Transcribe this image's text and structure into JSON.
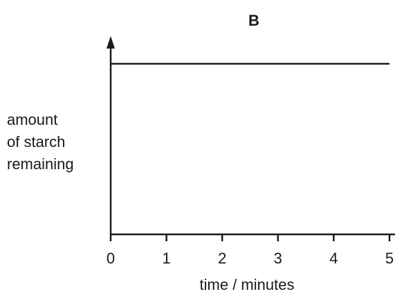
{
  "chart_data": {
    "type": "line",
    "title": "B",
    "xlabel": "time / minutes",
    "ylabel": [
      "amount",
      "of starch",
      "remaining"
    ],
    "x_ticks": [
      "0",
      "1",
      "2",
      "3",
      "4",
      "5"
    ],
    "xlim": [
      0,
      5
    ],
    "ylim": [
      0,
      1
    ],
    "grid": false,
    "y_axis_arrow": true,
    "series": [
      {
        "x": [
          0,
          5
        ],
        "y": [
          1,
          1
        ]
      }
    ]
  },
  "colors": {
    "ink": "#1a1a1a",
    "background": "#ffffff"
  }
}
